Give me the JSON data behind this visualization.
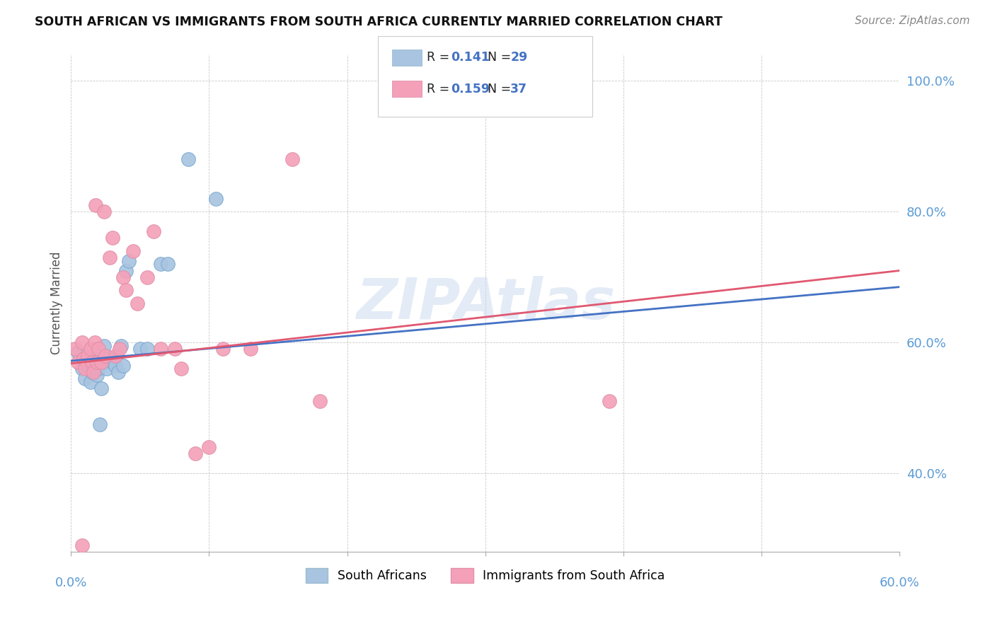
{
  "title": "SOUTH AFRICAN VS IMMIGRANTS FROM SOUTH AFRICA CURRENTLY MARRIED CORRELATION CHART",
  "source": "Source: ZipAtlas.com",
  "watermark": "ZIPAtlas",
  "legend1_r": "0.141",
  "legend1_n": "29",
  "legend2_r": "0.159",
  "legend2_n": "37",
  "blue_color": "#a8c4e0",
  "pink_color": "#f4a0b8",
  "blue_line_color": "#4472c4",
  "pink_line_color": "#e05870",
  "text_color_blue": "#4472c4",
  "axis_label_color": "#5b9bd5",
  "xlim": [
    0.0,
    0.6
  ],
  "ylim": [
    0.28,
    1.04
  ],
  "blue_scatter_x": [
    0.005,
    0.008,
    0.01,
    0.012,
    0.014,
    0.015,
    0.016,
    0.018,
    0.019,
    0.02,
    0.021,
    0.022,
    0.024,
    0.025,
    0.026,
    0.028,
    0.03,
    0.032,
    0.034,
    0.036,
    0.038,
    0.04,
    0.042,
    0.05,
    0.055,
    0.065,
    0.07,
    0.085,
    0.105
  ],
  "blue_scatter_y": [
    0.585,
    0.56,
    0.545,
    0.565,
    0.54,
    0.555,
    0.57,
    0.575,
    0.55,
    0.56,
    0.475,
    0.53,
    0.595,
    0.57,
    0.56,
    0.575,
    0.57,
    0.565,
    0.555,
    0.595,
    0.565,
    0.71,
    0.725,
    0.59,
    0.59,
    0.72,
    0.72,
    0.88,
    0.82
  ],
  "pink_scatter_x": [
    0.003,
    0.005,
    0.008,
    0.009,
    0.01,
    0.012,
    0.014,
    0.015,
    0.016,
    0.017,
    0.018,
    0.019,
    0.02,
    0.022,
    0.024,
    0.025,
    0.028,
    0.03,
    0.032,
    0.035,
    0.038,
    0.04,
    0.045,
    0.048,
    0.055,
    0.06,
    0.065,
    0.075,
    0.08,
    0.09,
    0.1,
    0.11,
    0.13,
    0.16,
    0.18,
    0.39,
    0.008
  ],
  "pink_scatter_y": [
    0.59,
    0.57,
    0.6,
    0.575,
    0.56,
    0.58,
    0.59,
    0.57,
    0.555,
    0.6,
    0.81,
    0.57,
    0.59,
    0.57,
    0.8,
    0.58,
    0.73,
    0.76,
    0.58,
    0.59,
    0.7,
    0.68,
    0.74,
    0.66,
    0.7,
    0.77,
    0.59,
    0.59,
    0.56,
    0.43,
    0.44,
    0.59,
    0.59,
    0.88,
    0.51,
    0.51,
    0.29
  ],
  "blue_trend_x0": 0.0,
  "blue_trend_y0": 0.572,
  "blue_trend_x1": 0.6,
  "blue_trend_y1": 0.685,
  "pink_trend_x0": 0.0,
  "pink_trend_y0": 0.568,
  "pink_trend_x1": 0.6,
  "pink_trend_y1": 0.71
}
